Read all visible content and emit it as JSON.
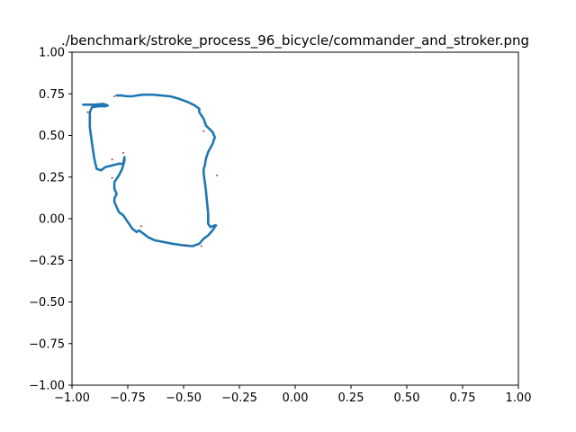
{
  "chart_data": {
    "type": "line",
    "title": "./benchmark/stroke_process_96_bicycle/commander_and_stroker.png",
    "xlabel": "",
    "ylabel": "",
    "xlim": [
      -1.0,
      1.0
    ],
    "ylim": [
      -1.0,
      1.0
    ],
    "x_ticks": [
      "−1.00",
      "−0.75",
      "−0.50",
      "−0.25",
      "0.00",
      "0.25",
      "0.50",
      "0.75",
      "1.00"
    ],
    "y_ticks": [
      "1.00",
      "0.75",
      "0.50",
      "0.25",
      "0.00",
      "−0.25",
      "−0.50",
      "−0.75",
      "−1.00"
    ],
    "grid": false,
    "series": [
      {
        "color": "#1f77b4",
        "x": [
          -0.95,
          -0.9,
          -0.86,
          -0.84,
          -0.85,
          -0.88,
          -0.91,
          -0.92,
          -0.92,
          -0.91,
          -0.9,
          -0.89,
          -0.87,
          -0.85,
          -0.82,
          -0.79,
          -0.77,
          -0.765,
          -0.765,
          -0.775,
          -0.79,
          -0.81,
          -0.81,
          -0.8,
          -0.81,
          -0.81,
          -0.8,
          -0.79,
          -0.77,
          -0.75,
          -0.73,
          -0.71,
          -0.7,
          -0.68,
          -0.66,
          -0.63,
          -0.59,
          -0.55,
          -0.5,
          -0.46,
          -0.43,
          -0.41,
          -0.39,
          -0.37,
          -0.36,
          -0.355,
          -0.36,
          -0.38,
          -0.39,
          -0.39,
          -0.395,
          -0.4,
          -0.405,
          -0.41,
          -0.41,
          -0.405,
          -0.4,
          -0.39,
          -0.37,
          -0.36,
          -0.37,
          -0.4,
          -0.41,
          -0.42,
          -0.43,
          -0.43,
          -0.45,
          -0.48,
          -0.52,
          -0.56,
          -0.6,
          -0.64,
          -0.68,
          -0.71,
          -0.73,
          -0.75,
          -0.78,
          -0.8
        ],
        "y": [
          0.685,
          0.685,
          0.69,
          0.68,
          0.675,
          0.675,
          0.67,
          0.64,
          0.55,
          0.45,
          0.36,
          0.3,
          0.29,
          0.31,
          0.32,
          0.33,
          0.33,
          0.37,
          0.35,
          0.3,
          0.26,
          0.22,
          0.18,
          0.15,
          0.12,
          0.1,
          0.07,
          0.04,
          0.02,
          -0.02,
          -0.06,
          -0.08,
          -0.07,
          -0.09,
          -0.11,
          -0.13,
          -0.14,
          -0.15,
          -0.16,
          -0.165,
          -0.15,
          -0.12,
          -0.1,
          -0.07,
          -0.05,
          -0.04,
          -0.04,
          -0.05,
          -0.03,
          0.03,
          0.1,
          0.17,
          0.22,
          0.27,
          0.3,
          0.32,
          0.36,
          0.4,
          0.45,
          0.49,
          0.52,
          0.56,
          0.6,
          0.62,
          0.64,
          0.66,
          0.68,
          0.7,
          0.72,
          0.735,
          0.74,
          0.745,
          0.745,
          0.74,
          0.735,
          0.735,
          0.74,
          0.74
        ]
      }
    ],
    "markers": {
      "color": "#d62728",
      "x": [
        -0.81,
        -0.93,
        -0.77,
        -0.82,
        -0.82,
        -0.69,
        -0.49,
        -0.42,
        -0.35,
        -0.41
      ],
      "y": [
        0.735,
        0.64,
        0.395,
        0.355,
        0.245,
        -0.045,
        -0.16,
        -0.165,
        0.26,
        0.525
      ]
    }
  }
}
